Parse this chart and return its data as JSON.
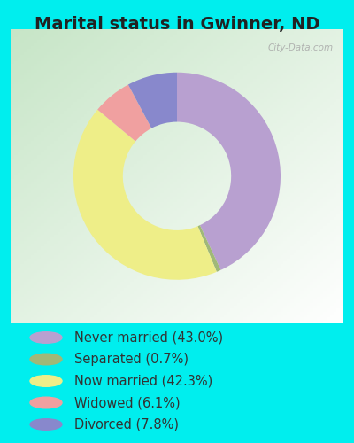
{
  "title": "Marital status in Gwinner, ND",
  "slices": [
    {
      "label": "Never married (43.0%)",
      "value": 43.0,
      "color": "#B8A0D0"
    },
    {
      "label": "Separated (0.7%)",
      "value": 0.7,
      "color": "#A0B878"
    },
    {
      "label": "Now married (42.3%)",
      "value": 42.3,
      "color": "#EEEE88"
    },
    {
      "label": "Widowed (6.1%)",
      "value": 6.1,
      "color": "#F0A0A0"
    },
    {
      "label": "Divorced (7.8%)",
      "value": 7.8,
      "color": "#8888CC"
    }
  ],
  "bg_cyan": "#00EEEE",
  "chart_panel_color": "#C8DFC0",
  "title_color": "#222222",
  "title_fontsize": 14,
  "legend_fontsize": 10.5,
  "watermark": "City-Data.com",
  "legend_text_color": "#333333"
}
